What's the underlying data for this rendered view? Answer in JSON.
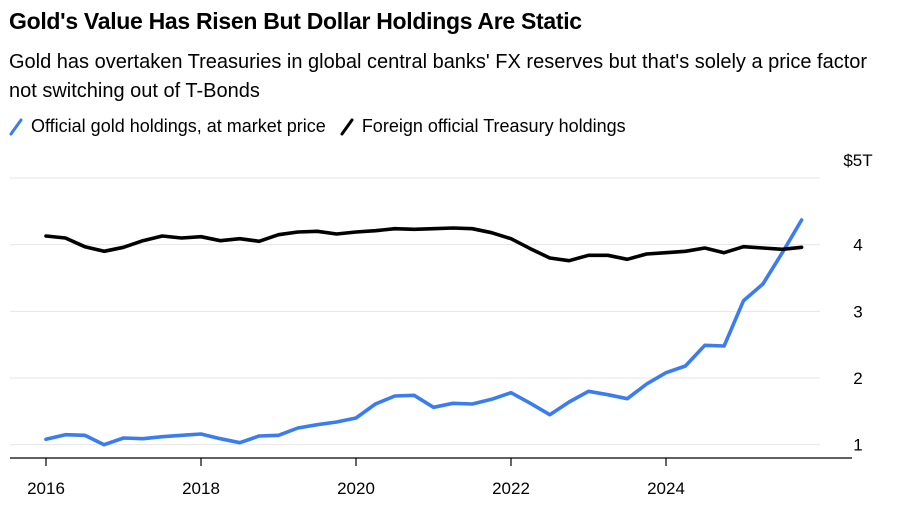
{
  "title": "Gold's Value Has Risen But Dollar Holdings Are Static",
  "subtitle": "Gold has overtaken Treasuries in global central banks' FX reserves but that's solely a price factor not switching out of T-Bonds",
  "colors": {
    "gold": "#3b7df0",
    "treasury": "#000000",
    "grid": "#e6e6e6",
    "axis": "#000000"
  },
  "legend": [
    {
      "label": "Official gold holdings, at market price",
      "color": "#3b7df0",
      "icon": "slash-line-icon"
    },
    {
      "label": "Foreign official Treasury holdings",
      "color": "#000000",
      "icon": "slash-line-icon"
    }
  ],
  "chart_data": {
    "type": "line",
    "title": "Gold's Value Has Risen But Dollar Holdings Are Static",
    "xlabel": "",
    "ylabel": "",
    "units": "$ trillions",
    "xlim": [
      2016.0,
      2026.0
    ],
    "ylim": [
      0.8,
      5.2
    ],
    "x_ticks": [
      {
        "value": 2016,
        "label": "2016"
      },
      {
        "value": 2018,
        "label": "2018"
      },
      {
        "value": 2020,
        "label": "2020"
      },
      {
        "value": 2022,
        "label": "2022"
      },
      {
        "value": 2024,
        "label": "2024"
      }
    ],
    "y_ticks": [
      {
        "value": 1,
        "label": "1"
      },
      {
        "value": 2,
        "label": "2"
      },
      {
        "value": 3,
        "label": "3"
      },
      {
        "value": 4,
        "label": "4"
      },
      {
        "value": 5,
        "label": "$5T"
      }
    ],
    "series": [
      {
        "name": "Official gold holdings, at market price",
        "color": "#3b7df0",
        "x": [
          2016.0,
          2016.25,
          2016.5,
          2016.75,
          2017.0,
          2017.25,
          2017.5,
          2017.75,
          2018.0,
          2018.25,
          2018.5,
          2018.75,
          2019.0,
          2019.25,
          2019.5,
          2019.75,
          2020.0,
          2020.25,
          2020.5,
          2020.75,
          2021.0,
          2021.25,
          2021.5,
          2021.75,
          2022.0,
          2022.25,
          2022.5,
          2022.75,
          2023.0,
          2023.25,
          2023.5,
          2023.75,
          2024.0,
          2024.25,
          2024.5,
          2024.75,
          2025.0,
          2025.25,
          2025.5,
          2025.75
        ],
        "values": [
          1.08,
          1.15,
          1.14,
          1.0,
          1.1,
          1.09,
          1.12,
          1.14,
          1.16,
          1.09,
          1.03,
          1.13,
          1.14,
          1.25,
          1.3,
          1.34,
          1.4,
          1.61,
          1.73,
          1.74,
          1.56,
          1.62,
          1.61,
          1.68,
          1.78,
          1.62,
          1.45,
          1.64,
          1.8,
          1.75,
          1.69,
          1.91,
          2.08,
          2.18,
          2.49,
          2.48,
          3.16,
          3.41,
          3.88,
          4.37
        ]
      },
      {
        "name": "Foreign official Treasury holdings",
        "color": "#000000",
        "x": [
          2016.0,
          2016.25,
          2016.5,
          2016.75,
          2017.0,
          2017.25,
          2017.5,
          2017.75,
          2018.0,
          2018.25,
          2018.5,
          2018.75,
          2019.0,
          2019.25,
          2019.5,
          2019.75,
          2020.0,
          2020.25,
          2020.5,
          2020.75,
          2021.0,
          2021.25,
          2021.5,
          2021.75,
          2022.0,
          2022.25,
          2022.5,
          2022.75,
          2023.0,
          2023.25,
          2023.5,
          2023.75,
          2024.0,
          2024.25,
          2024.5,
          2024.75,
          2025.0,
          2025.25,
          2025.5,
          2025.75
        ],
        "values": [
          4.13,
          4.1,
          3.97,
          3.9,
          3.96,
          4.06,
          4.13,
          4.1,
          4.12,
          4.06,
          4.09,
          4.05,
          4.15,
          4.19,
          4.2,
          4.16,
          4.19,
          4.21,
          4.24,
          4.23,
          4.24,
          4.25,
          4.24,
          4.18,
          4.09,
          3.94,
          3.8,
          3.76,
          3.84,
          3.84,
          3.78,
          3.86,
          3.88,
          3.9,
          3.95,
          3.88,
          3.97,
          3.95,
          3.93,
          3.96
        ]
      }
    ],
    "grid": "horizontal"
  }
}
